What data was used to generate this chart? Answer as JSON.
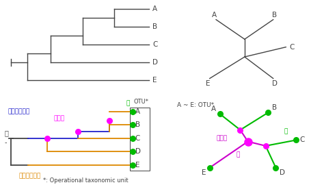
{
  "bg_color": "#ffffff",
  "labels_ABCDE": [
    "A",
    "B",
    "C",
    "D",
    "E"
  ],
  "cladogram_color": "#444444",
  "node_color": "#ff00ff",
  "leaf_color": "#00bb00",
  "blue_branch_color": "#2222cc",
  "orange_branch_color": "#dd8800",
  "purple_branch_color": "#cc00cc",
  "text_color_blue": "#2222cc",
  "text_color_orange": "#dd8800",
  "text_color_magenta": "#ff00ff",
  "text_color_purple": "#cc00cc",
  "text_color_dark": "#444444",
  "text_color_green": "#00bb00",
  "footer_text": "*: Operational taxonomic unit"
}
